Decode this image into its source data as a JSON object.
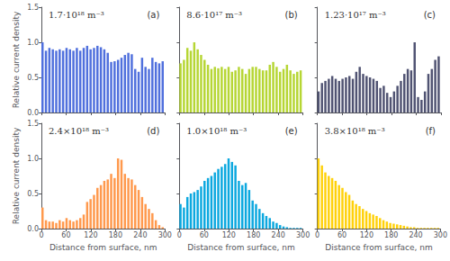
{
  "chart_data": [
    {
      "type": "histogram",
      "title": "(a)",
      "annotation": "1.7·10¹⁸ m⁻³",
      "bins": [
        0,
        8.333333333333334,
        16.666666666666668,
        25,
        33.333333333333336,
        41.66666666666667,
        50,
        58.333333333333336,
        66.66666666666667,
        75,
        83.33333333333334,
        91.66666666666667,
        100,
        108.33333333333334,
        116.66666666666667,
        125,
        133.33333333333334,
        141.66666666666669,
        150,
        158.33333333333334,
        166.66666666666669,
        175,
        183.33333333333334,
        191.66666666666669,
        200,
        208.33333333333334,
        216.66666666666669,
        225,
        233.33333333333334,
        241.66666666666669,
        250,
        258.33333333333337,
        266.6666666666667,
        275,
        283.33333333333337,
        291.6666666666667,
        300
      ],
      "values": [
        1.0,
        0.88,
        0.92,
        0.9,
        0.88,
        0.9,
        0.88,
        0.92,
        0.9,
        0.88,
        0.92,
        0.88,
        0.92,
        0.95,
        0.9,
        0.92,
        0.95,
        0.93,
        0.9,
        0.85,
        0.72,
        0.73,
        0.75,
        0.78,
        0.82,
        0.85,
        0.83,
        0.62,
        0.58,
        0.78,
        0.65,
        0.62,
        0.78,
        0.72,
        0.7,
        0.73
      ],
      "xlim": [
        0,
        300
      ],
      "xticks": [
        0,
        60,
        120,
        180,
        240,
        300
      ],
      "ylim": [
        0,
        1.5
      ],
      "yticks": [
        {
          "value": 0,
          "label": "0.0"
        },
        0.5,
        {
          "value": 1,
          "label": "1.0"
        },
        1.5
      ],
      "ylabel": "Relative current density",
      "grid": false,
      "tick_labels": "y"
    },
    {
      "type": "histogram",
      "title": "(b)",
      "annotation": "8.6·10¹⁷ m⁻³",
      "bins": [
        0,
        8.333333333333334,
        16.666666666666668,
        25,
        33.333333333333336,
        41.66666666666667,
        50,
        58.333333333333336,
        66.66666666666667,
        75,
        83.33333333333334,
        91.66666666666667,
        100,
        108.33333333333334,
        116.66666666666667,
        125,
        133.33333333333334,
        141.66666666666669,
        150,
        158.33333333333334,
        166.66666666666669,
        175,
        183.33333333333334,
        191.66666666666669,
        200,
        208.33333333333334,
        216.66666666666669,
        225,
        233.33333333333334,
        241.66666666666669,
        250,
        258.33333333333337,
        266.6666666666667,
        275,
        283.33333333333337,
        291.6666666666667,
        300
      ],
      "values": [
        0.7,
        0.75,
        0.92,
        0.88,
        1.0,
        0.9,
        0.82,
        0.75,
        0.68,
        0.62,
        0.65,
        0.63,
        0.65,
        0.62,
        0.65,
        0.58,
        0.6,
        0.65,
        0.62,
        0.55,
        0.62,
        0.65,
        0.65,
        0.62,
        0.6,
        0.6,
        0.68,
        0.72,
        0.65,
        0.58,
        0.62,
        0.68,
        0.6,
        0.55,
        0.58,
        0.6
      ],
      "xlim": [
        0,
        300
      ],
      "xticks": [
        0,
        60,
        120,
        180,
        240,
        300
      ],
      "ylim": [
        0,
        1.5
      ],
      "yticks": [
        {
          "value": 0,
          "label": "0.0"
        },
        0.5,
        {
          "value": 1,
          "label": "1.0"
        },
        1.5
      ],
      "grid": false,
      "tick_labels": false
    },
    {
      "type": "histogram",
      "title": "(c)",
      "annotation": "1.23·10¹⁷ m⁻³",
      "bins": [
        0,
        8.333333333333334,
        16.666666666666668,
        25,
        33.333333333333336,
        41.66666666666667,
        50,
        58.333333333333336,
        66.66666666666667,
        75,
        83.33333333333334,
        91.66666666666667,
        100,
        108.33333333333334,
        116.66666666666667,
        125,
        133.33333333333334,
        141.66666666666669,
        150,
        158.33333333333334,
        166.66666666666669,
        175,
        183.33333333333334,
        191.66666666666669,
        200,
        208.33333333333334,
        216.66666666666669,
        225,
        233.33333333333334,
        241.66666666666669,
        250,
        258.33333333333337,
        266.6666666666667,
        275,
        283.33333333333337,
        291.6666666666667,
        300
      ],
      "values": [
        0.3,
        0.42,
        0.45,
        0.48,
        0.52,
        0.48,
        0.45,
        0.48,
        0.5,
        0.52,
        0.48,
        0.58,
        0.65,
        0.55,
        0.52,
        0.5,
        0.48,
        0.45,
        0.35,
        0.38,
        0.28,
        0.22,
        0.3,
        0.38,
        0.45,
        0.55,
        0.62,
        0.6,
        1.0,
        0.22,
        0.18,
        0.3,
        0.55,
        0.62,
        0.75,
        0.8
      ],
      "xlim": [
        0,
        300
      ],
      "xticks": [
        0,
        60,
        120,
        180,
        240,
        300
      ],
      "ylim": [
        0,
        1.5
      ],
      "yticks": [
        {
          "value": 0,
          "label": "0.0"
        },
        0.5,
        {
          "value": 1,
          "label": "1.0"
        },
        1.5
      ],
      "grid": false,
      "tick_labels": false
    },
    {
      "type": "histogram",
      "title": "(d)",
      "annotation": "2.4×10¹⁸ m⁻³",
      "bins": [
        0,
        8.333333333333334,
        16.666666666666668,
        25,
        33.333333333333336,
        41.66666666666667,
        50,
        58.333333333333336,
        66.66666666666667,
        75,
        83.33333333333334,
        91.66666666666667,
        100,
        108.33333333333334,
        116.66666666666667,
        125,
        133.33333333333334,
        141.66666666666669,
        150,
        158.33333333333334,
        166.66666666666669,
        175,
        183.33333333333334,
        191.66666666666669,
        200,
        208.33333333333334,
        216.66666666666669,
        225,
        233.33333333333334,
        241.66666666666669,
        250,
        258.33333333333337,
        266.6666666666667,
        275,
        283.33333333333337,
        291.6666666666667,
        300
      ],
      "values": [
        0.3,
        0.12,
        0.1,
        0.1,
        0.08,
        0.12,
        0.1,
        0.15,
        0.12,
        0.1,
        0.12,
        0.15,
        0.2,
        0.38,
        0.42,
        0.48,
        0.58,
        0.62,
        0.68,
        0.7,
        0.78,
        0.72,
        1.0,
        0.98,
        0.78,
        0.72,
        0.7,
        0.62,
        0.55,
        0.45,
        0.35,
        0.28,
        0.22,
        0.12,
        0.05,
        0.02
      ],
      "xlim": [
        0,
        300
      ],
      "xticks": [
        0,
        60,
        120,
        180,
        240,
        300
      ],
      "ylim": [
        0,
        1.5
      ],
      "yticks": [
        {
          "value": 0,
          "label": "0.0"
        },
        0.5,
        {
          "value": 1,
          "label": "1.0"
        },
        1.5
      ],
      "ylabel": "Relative current density",
      "xlabel": "Distance from surface, nm",
      "grid": false,
      "tick_labels": true
    },
    {
      "type": "histogram",
      "title": "(e)",
      "annotation": "1.0×10¹⁸ m⁻³",
      "bins": [
        0,
        8.333333333333334,
        16.666666666666668,
        25,
        33.333333333333336,
        41.66666666666667,
        50,
        58.333333333333336,
        66.66666666666667,
        75,
        83.33333333333334,
        91.66666666666667,
        100,
        108.33333333333334,
        116.66666666666667,
        125,
        133.33333333333334,
        141.66666666666669,
        150,
        158.33333333333334,
        166.66666666666669,
        175,
        183.33333333333334,
        191.66666666666669,
        200,
        208.33333333333334,
        216.66666666666669,
        225,
        233.33333333333334,
        241.66666666666669,
        250,
        258.33333333333337,
        266.6666666666667,
        275,
        283.33333333333337,
        291.6666666666667,
        300
      ],
      "values": [
        0.35,
        0.3,
        0.45,
        0.5,
        0.52,
        0.55,
        0.6,
        0.68,
        0.72,
        0.75,
        0.8,
        0.85,
        0.88,
        0.92,
        1.0,
        0.95,
        0.9,
        0.68,
        0.62,
        0.65,
        0.55,
        0.4,
        0.35,
        0.28,
        0.22,
        0.18,
        0.15,
        0.1,
        0.08,
        0.05,
        0.03,
        0.02,
        0.01,
        0.01,
        0.01,
        0.01
      ],
      "xlim": [
        0,
        300
      ],
      "xticks": [
        0,
        60,
        120,
        180,
        240,
        300
      ],
      "ylim": [
        0,
        1.5
      ],
      "yticks": [
        {
          "value": 0,
          "label": "0.0"
        },
        0.5,
        {
          "value": 1,
          "label": "1.0"
        },
        1.5
      ],
      "xlabel": "Distance from surface, nm",
      "grid": false,
      "tick_labels": "x"
    },
    {
      "type": "histogram",
      "title": "(f)",
      "annotation": "3.8×10¹⁸ m⁻³",
      "bins": [
        0,
        8.333333333333334,
        16.666666666666668,
        25,
        33.333333333333336,
        41.66666666666667,
        50,
        58.333333333333336,
        66.66666666666667,
        75,
        83.33333333333334,
        91.66666666666667,
        100,
        108.33333333333334,
        116.66666666666667,
        125,
        133.33333333333334,
        141.66666666666669,
        150,
        158.33333333333334,
        166.66666666666669,
        175,
        183.33333333333334,
        191.66666666666669,
        200,
        208.33333333333334,
        216.66666666666669,
        225,
        233.33333333333334,
        241.66666666666669,
        250,
        258.33333333333337,
        266.6666666666667,
        275,
        283.33333333333337,
        291.6666666666667,
        300
      ],
      "values": [
        1.0,
        0.9,
        0.8,
        0.75,
        0.72,
        0.68,
        0.62,
        0.58,
        0.52,
        0.48,
        0.4,
        0.35,
        0.32,
        0.28,
        0.25,
        0.22,
        0.2,
        0.18,
        0.15,
        0.12,
        0.1,
        0.08,
        0.07,
        0.06,
        0.05,
        0.04,
        0.03,
        0.02,
        0.02,
        0.01,
        0.01,
        0.01,
        0.01,
        0.01,
        0.01,
        0.01
      ],
      "xlim": [
        0,
        300
      ],
      "xticks": [
        0,
        60,
        120,
        180,
        240,
        300
      ],
      "ylim": [
        0,
        1.5
      ],
      "yticks": [
        {
          "value": 0,
          "label": "0.0"
        },
        0.5,
        {
          "value": 1,
          "label": "1.0"
        },
        1.5
      ],
      "xlabel": "Distance from surface, nm",
      "grid": false,
      "tick_labels": "x"
    }
  ]
}
